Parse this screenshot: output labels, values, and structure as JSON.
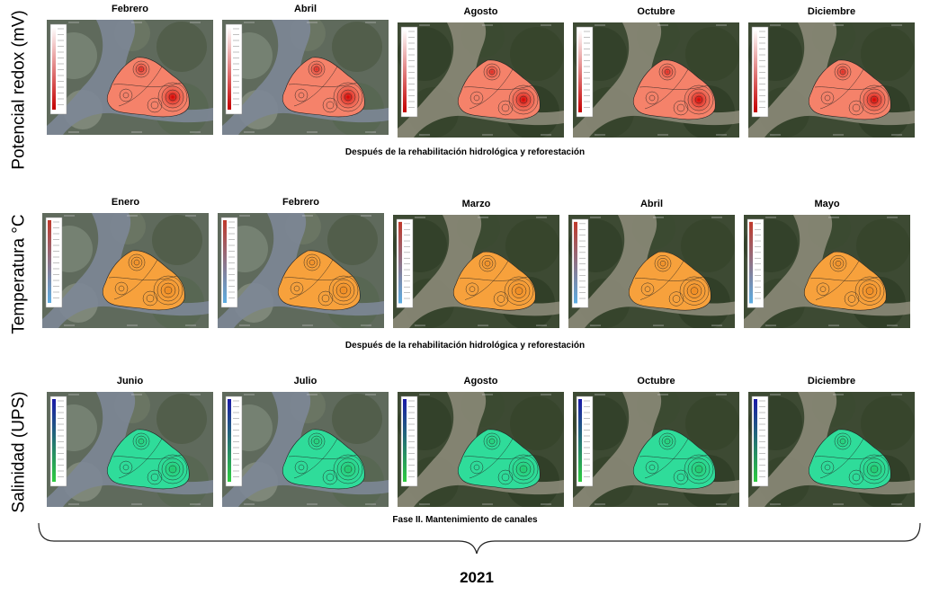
{
  "rows": [
    {
      "label": "Potencial redox (mV)",
      "variable": "redox",
      "months": [
        "Febrero",
        "Abril",
        "Agosto",
        "Octubre",
        "Diciembre"
      ],
      "caption": "Después de la rehabilitación  hidrológica y reforestación",
      "colors": {
        "fill": "#f5826a",
        "hot": "#d50000",
        "legend_top": "#ffffff",
        "legend_bottom": "#c40000"
      }
    },
    {
      "label": "Temperatura °C",
      "variable": "temperature",
      "months": [
        "Enero",
        "Febrero",
        "Marzo",
        "Abril",
        "Mayo"
      ],
      "caption": "Después de la rehabilitación  hidrológica y reforestación",
      "colors": {
        "fill": "#f7a13c",
        "hot": "#ef8a20",
        "legend_top": "#c0392b",
        "legend_bottom": "#5dade2"
      }
    },
    {
      "label": "Salinidad (UPS)",
      "variable": "salinity",
      "months": [
        "Junio",
        "Julio",
        "Agosto",
        "Octubre",
        "Diciembre"
      ],
      "caption": "Fase II. Mantenimiento  de canales",
      "colors": {
        "fill": "#2fdc9a",
        "hot": "#22c86a",
        "legend_top": "#1a1aa8",
        "legend_bottom": "#2ecc40"
      }
    }
  ],
  "year": "2021"
}
